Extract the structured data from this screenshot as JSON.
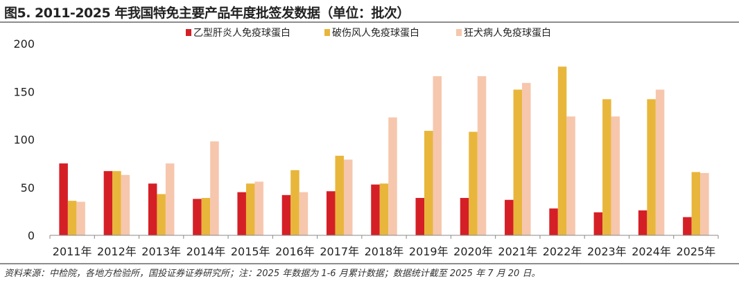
{
  "title": "图5. 2011-2025 年我国特免主要产品年度批签发数据（单位：批次）",
  "source": "资料来源：中检院，各地方检验所，国投证券证券研究所；注：2025 年数据为 1-6 月累计数据；数据统计截至 2025 年 7 月 20 日。",
  "chart_data": {
    "type": "bar",
    "title": "",
    "xlabel": "",
    "ylabel": "",
    "ylim": [
      0,
      200
    ],
    "yticks": [
      0,
      50,
      100,
      150,
      200
    ],
    "grid": false,
    "legend_position": "top",
    "categories": [
      "2011年",
      "2012年",
      "2013年",
      "2014年",
      "2015年",
      "2016年",
      "2017年",
      "2018年",
      "2019年",
      "2020年",
      "2021年",
      "2022年",
      "2023年",
      "2024年",
      "2025年"
    ],
    "series": [
      {
        "name": "乙型肝炎人免疫球蛋白",
        "color": "#d51f26",
        "values": [
          75,
          67,
          54,
          38,
          45,
          42,
          46,
          53,
          39,
          39,
          37,
          28,
          24,
          26,
          19
        ]
      },
      {
        "name": "破伤风人免疫球蛋白",
        "color": "#e8b63b",
        "values": [
          36,
          67,
          43,
          39,
          54,
          68,
          83,
          54,
          109,
          108,
          152,
          176,
          142,
          142,
          66
        ]
      },
      {
        "name": "狂犬病人免疫球蛋白",
        "color": "#f6c7ad",
        "values": [
          35,
          63,
          75,
          98,
          56,
          45,
          79,
          123,
          166,
          166,
          159,
          124,
          124,
          152,
          65
        ]
      }
    ]
  }
}
